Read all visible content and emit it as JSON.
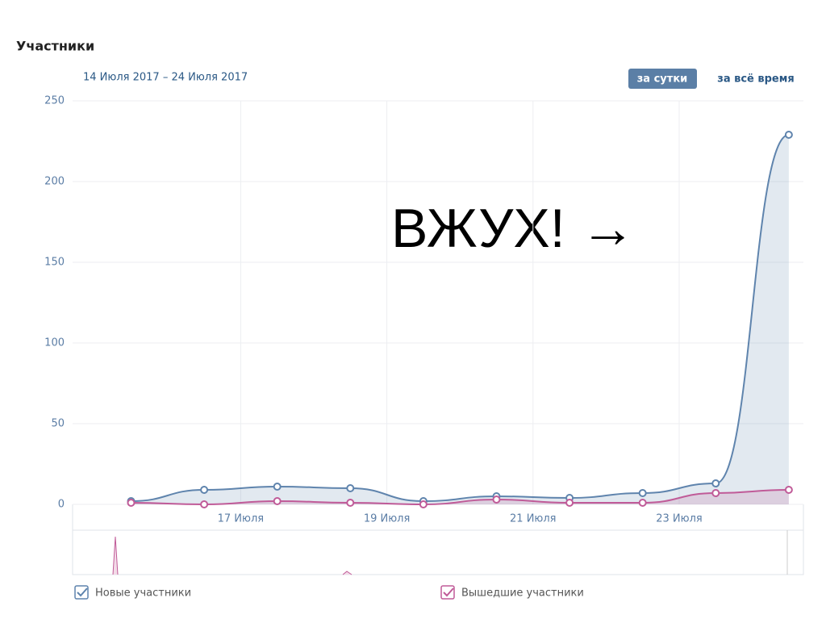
{
  "chart_data": {
    "type": "line",
    "title": "Участники",
    "subtitle": "14 Июля 2017 – 24 Июля 2017",
    "buttons": [
      "за сутки",
      "за всё время"
    ],
    "annotation": "ВЖУХ! →",
    "x": [
      15.5,
      16.5,
      17.5,
      18.5,
      19.5,
      20.5,
      21.5,
      22.5,
      23.5,
      24.5
    ],
    "xlim": [
      14.7,
      24.7
    ],
    "xticks": [
      {
        "value": 17,
        "label": "17 Июля"
      },
      {
        "value": 19,
        "label": "19 Июля"
      },
      {
        "value": 21,
        "label": "21 Июля"
      },
      {
        "value": 23,
        "label": "23 Июля"
      }
    ],
    "ylim": [
      0,
      250
    ],
    "yticks": [
      0,
      50,
      100,
      150,
      200,
      250
    ],
    "grid": true,
    "series": [
      {
        "name": "Новые участники",
        "color": "#5f84ad",
        "values": [
          2,
          9,
          11,
          10,
          2,
          5,
          4,
          7,
          13,
          229
        ]
      },
      {
        "name": "Вышедшие участники",
        "color": "#c05b98",
        "values": [
          1,
          0,
          2,
          1,
          0,
          3,
          1,
          1,
          7,
          9
        ]
      }
    ]
  }
}
